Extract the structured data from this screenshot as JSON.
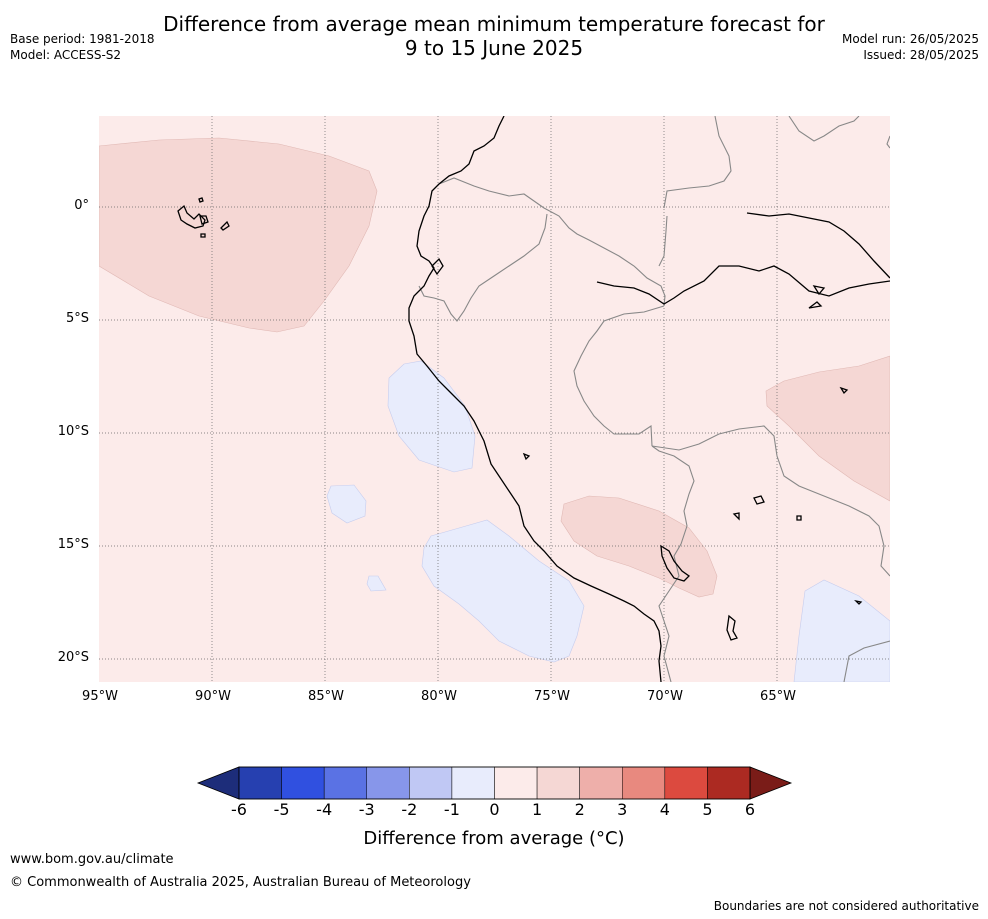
{
  "title": "Difference from average mean minimum temperature forecast for\n9 to 15 June 2025",
  "title_line1": "Difference from average mean minimum temperature forecast for",
  "title_line2": "9 to 15 June 2025",
  "meta_left": [
    "Base period: 1981-2018",
    "Model: ACCESS-S2"
  ],
  "meta_right": [
    "Model run: 26/05/2025",
    "Issued: 28/05/2025"
  ],
  "map": {
    "lon_range": [
      -95,
      -60
    ],
    "lat_range": [
      -21,
      4
    ],
    "lat_ticks": [
      {
        "value": 0,
        "label": "0°"
      },
      {
        "value": -5,
        "label": "5°S"
      },
      {
        "value": -10,
        "label": "10°S"
      },
      {
        "value": -15,
        "label": "15°S"
      },
      {
        "value": -20,
        "label": "20°S"
      }
    ],
    "lon_ticks": [
      {
        "value": -95,
        "label": "95°W"
      },
      {
        "value": -90,
        "label": "90°W"
      },
      {
        "value": -85,
        "label": "85°W"
      },
      {
        "value": -80,
        "label": "80°W"
      },
      {
        "value": -75,
        "label": "75°W"
      },
      {
        "value": -70,
        "label": "70°W"
      },
      {
        "value": -65,
        "label": "65°W"
      }
    ],
    "background_category": "0 to 1",
    "gridlines": "dotted"
  },
  "colorbar": {
    "ticks": [
      "-6",
      "-5",
      "-4",
      "-3",
      "-2",
      "-1",
      "0",
      "1",
      "2",
      "3",
      "4",
      "5",
      "6"
    ],
    "colors": [
      "#2640b0",
      "#3050e0",
      "#5a72e4",
      "#8796ea",
      "#c0c8f4",
      "#e8ecfc",
      "#fcebea",
      "#f5d7d4",
      "#eeafaa",
      "#e8897f",
      "#dc4a3f",
      "#ac2a22"
    ],
    "under_color": "#1d2d7a",
    "over_color": "#7a1c18",
    "label": "Difference from average (°C)",
    "label_main": "Difference from average (",
    "label_unit": "°C",
    "label_close": ")"
  },
  "footer": {
    "url": "www.bom.gov.au/climate",
    "copyright": "© Commonwealth of Australia 2025, Australian Bureau of Meteorology",
    "note": "Boundaries are not considered authoritative"
  }
}
